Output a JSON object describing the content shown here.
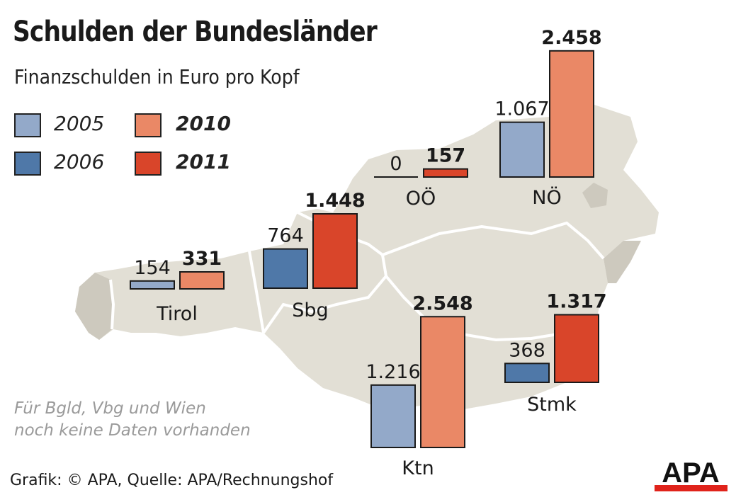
{
  "chart_data": {
    "type": "bar",
    "title": "Schulden der Bundesländer",
    "subtitle": "Finanzschulden in Euro pro Kopf",
    "series": [
      {
        "name": "2005",
        "color": "#93a9c9"
      },
      {
        "name": "2006",
        "color": "#4f78a8"
      },
      {
        "name": "2010",
        "color": "#ea8866"
      },
      {
        "name": "2011",
        "color": "#d9452a"
      }
    ],
    "groups": [
      {
        "region": "Tirol",
        "bars": [
          {
            "series": "2005",
            "value": 154,
            "label": "154"
          },
          {
            "series": "2010",
            "value": 331,
            "label": "331"
          }
        ]
      },
      {
        "region": "Sbg",
        "bars": [
          {
            "series": "2006",
            "value": 764,
            "label": "764"
          },
          {
            "series": "2011",
            "value": 1448,
            "label": "1.448"
          }
        ]
      },
      {
        "region": "OÖ",
        "bars": [
          {
            "series": "2006",
            "value": 0,
            "label": "0"
          },
          {
            "series": "2011",
            "value": 157,
            "label": "157"
          }
        ]
      },
      {
        "region": "NÖ",
        "bars": [
          {
            "series": "2005",
            "value": 1067,
            "label": "1.067"
          },
          {
            "series": "2010",
            "value": 2458,
            "label": "2.458"
          }
        ]
      },
      {
        "region": "Ktn",
        "bars": [
          {
            "series": "2005",
            "value": 1216,
            "label": "1.216"
          },
          {
            "series": "2010",
            "value": 2548,
            "label": "2.548"
          }
        ]
      },
      {
        "region": "Stmk",
        "bars": [
          {
            "series": "2006",
            "value": 368,
            "label": "368"
          },
          {
            "series": "2011",
            "value": 1317,
            "label": "1.317"
          }
        ]
      }
    ]
  },
  "legend": {
    "items": [
      {
        "label": "2005",
        "color": "#93a9c9",
        "bold": false
      },
      {
        "label": "2006",
        "color": "#4f78a8",
        "bold": false
      },
      {
        "label": "2010",
        "color": "#ea8866",
        "bold": true
      },
      {
        "label": "2011",
        "color": "#d9452a",
        "bold": true
      }
    ]
  },
  "note": {
    "line1": "Für Bgld, Vbg und Wien",
    "line2": "noch keine Daten vorhanden"
  },
  "source": "Grafik: © APA, Quelle: APA/Rechnungshof",
  "logo": {
    "text": "APA",
    "accent_color": "#e0231b"
  },
  "map": {
    "fill": "#e2dfd5",
    "dark_fill": "#cdc9be",
    "border": "#ffffff"
  }
}
